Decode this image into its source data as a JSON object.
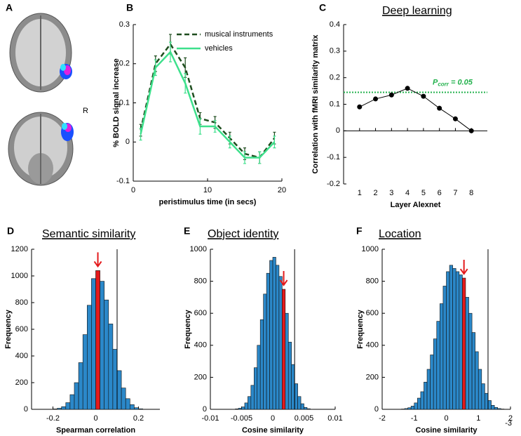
{
  "panel_a": {
    "panel": "A",
    "side_label": "R"
  },
  "chart_data": [
    {
      "type": "line",
      "panel": "B",
      "xlabel": "peristimulus time (in secs)",
      "ylabel": "% BOLD signal increase",
      "x": [
        1,
        3,
        5,
        7,
        9,
        11,
        13,
        15,
        17,
        19
      ],
      "series": [
        {
          "name": "musical instruments",
          "color": "#1e4d1e",
          "style": "dashed",
          "values": [
            0.03,
            0.2,
            0.25,
            0.19,
            0.06,
            0.05,
            0.01,
            -0.03,
            -0.04,
            0.01
          ],
          "errors": [
            0.015,
            0.02,
            0.025,
            0.025,
            0.015,
            0.015,
            0.015,
            0.015,
            0.015,
            0.015
          ]
        },
        {
          "name": "vehicles",
          "color": "#3ee08c",
          "style": "solid",
          "values": [
            0.02,
            0.19,
            0.23,
            0.15,
            0.04,
            0.04,
            0.0,
            -0.04,
            -0.04,
            0.0
          ],
          "errors": [
            0.015,
            0.02,
            0.025,
            0.025,
            0.02,
            0.015,
            0.015,
            0.015,
            0.015,
            0.015
          ]
        }
      ],
      "xlim": [
        0,
        20
      ],
      "xticks": [
        0,
        10,
        20
      ],
      "ylim": [
        -0.1,
        0.3
      ],
      "yticks": [
        -0.1,
        0,
        0.1,
        0.2,
        0.3
      ],
      "legend": "upper right"
    },
    {
      "type": "line",
      "panel": "C",
      "title": "Deep learning",
      "xlabel": "Layer Alexnet",
      "ylabel": "Correlation with fMRI similarity matrix",
      "x": [
        1,
        2,
        3,
        4,
        5,
        6,
        7,
        8
      ],
      "series": [
        {
          "color": "#000000",
          "style": "solid",
          "marker": "circle",
          "values": [
            0.09,
            0.12,
            0.135,
            0.16,
            0.13,
            0.085,
            0.045,
            0.0
          ]
        }
      ],
      "xlim": [
        0,
        9
      ],
      "xticks": [
        1,
        2,
        3,
        4,
        5,
        6,
        7,
        8
      ],
      "ylim": [
        -0.2,
        0.4
      ],
      "yticks": [
        -0.2,
        -0.1,
        0,
        0.1,
        0.2,
        0.3,
        0.4
      ],
      "threshold": {
        "value": 0.145,
        "label": "P",
        "sub": "corr",
        "suffix": " = 0.05",
        "color": "#22b14c"
      }
    },
    {
      "type": "histogram",
      "panel": "D",
      "title": "Semantic similarity",
      "xlabel": "Spearman correlation",
      "ylabel": "Frequency",
      "bins": [
        -0.2,
        -0.18,
        -0.16,
        -0.14,
        -0.12,
        -0.1,
        -0.08,
        -0.06,
        -0.04,
        -0.02,
        0,
        0.02,
        0.04,
        0.06,
        0.08,
        0.1,
        0.12,
        0.14,
        0.16,
        0.18,
        0.2,
        0.22
      ],
      "counts": [
        3,
        8,
        20,
        50,
        110,
        200,
        350,
        560,
        780,
        980,
        1040,
        960,
        820,
        640,
        450,
        290,
        160,
        80,
        35,
        12,
        4
      ],
      "color": "#2b88c9",
      "highlight": 10,
      "highlight_color": "#e41a1c",
      "threshold": 0.1,
      "xlim": [
        -0.3,
        0.3
      ],
      "xticks": [
        -0.2,
        0,
        0.2
      ],
      "ylim": [
        0,
        1200
      ],
      "yticks": [
        0,
        200,
        400,
        600,
        800,
        1000,
        1200
      ]
    },
    {
      "type": "histogram",
      "panel": "E",
      "title": "Object identity",
      "xlabel": "Cosine similarity",
      "ylabel": "Frequency",
      "bins": [
        -0.0065,
        -0.006,
        -0.0055,
        -0.005,
        -0.0045,
        -0.004,
        -0.0035,
        -0.003,
        -0.0025,
        -0.002,
        -0.0015,
        -0.001,
        -0.0005,
        0,
        0.0005,
        0.001,
        0.0015,
        0.002,
        0.0025,
        0.003,
        0.0035,
        0.004,
        0.0045,
        0.005,
        0.0055,
        0.006,
        0.0065
      ],
      "counts": [
        1,
        3,
        7,
        15,
        40,
        80,
        150,
        260,
        400,
        560,
        720,
        850,
        930,
        950,
        900,
        830,
        750,
        600,
        420,
        280,
        160,
        80,
        35,
        12,
        4,
        1
      ],
      "color": "#2b88c9",
      "highlight": 16,
      "highlight_color": "#e41a1c",
      "threshold": 0.0035,
      "xlim": [
        -0.01,
        0.01
      ],
      "xticks": [
        -0.01,
        -0.005,
        0,
        0.005,
        0.01
      ],
      "ylim": [
        0,
        1000
      ],
      "yticks": [
        0,
        200,
        400,
        600,
        800,
        1000
      ]
    },
    {
      "type": "histogram",
      "panel": "F",
      "title": "Location",
      "xlabel": "Cosine similarity",
      "ylabel": "Frequency",
      "x_exponent": "-3",
      "bins": [
        -1.4,
        -1.3,
        -1.2,
        -1.1,
        -1.0,
        -0.9,
        -0.8,
        -0.7,
        -0.6,
        -0.5,
        -0.4,
        -0.3,
        -0.2,
        -0.1,
        0,
        0.1,
        0.2,
        0.3,
        0.4,
        0.5,
        0.6,
        0.7,
        0.8,
        0.9,
        1.0,
        1.1,
        1.2,
        1.3,
        1.4,
        1.5,
        1.6,
        1.7,
        1.8
      ],
      "counts": [
        2,
        5,
        10,
        20,
        40,
        70,
        110,
        170,
        250,
        340,
        440,
        550,
        660,
        770,
        860,
        900,
        880,
        860,
        840,
        820,
        700,
        600,
        480,
        360,
        250,
        160,
        100,
        55,
        25,
        12,
        5,
        2
      ],
      "color": "#2b88c9",
      "highlight": 19,
      "highlight_color": "#e41a1c",
      "threshold": 1.3,
      "xlim": [
        -2,
        2
      ],
      "xticks": [
        -2,
        -1,
        0,
        1,
        2
      ],
      "ylim": [
        0,
        1000
      ],
      "yticks": [
        0,
        200,
        400,
        600,
        800,
        1000
      ]
    }
  ]
}
